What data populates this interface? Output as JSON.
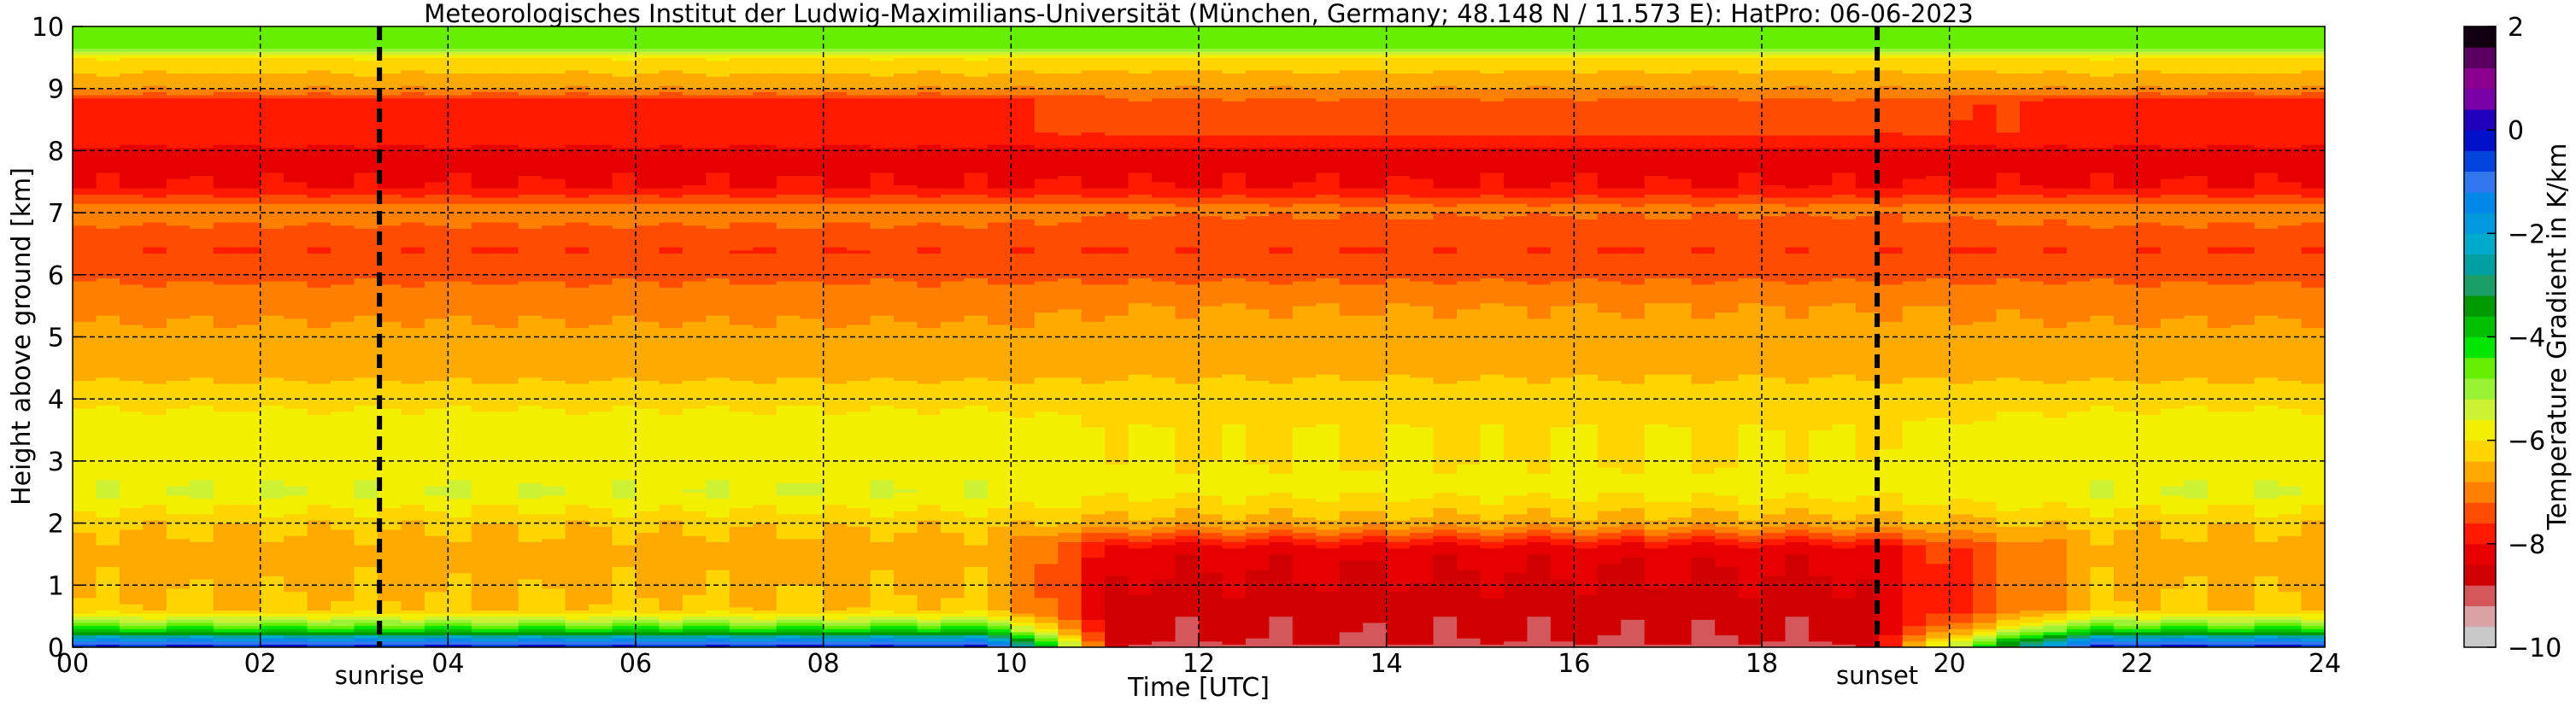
{
  "chart_data": {
    "type": "heatmap",
    "title": "Meteorologisches Institut der Ludwig-Maximilians-Universität (München, Germany; 48.148 N / 11.573 E):    HatPro: 06-06-2023",
    "xlabel": "Time [UTC]",
    "ylabel": "Height above ground [km]",
    "xlim": [
      0,
      24
    ],
    "ylim": [
      0,
      10
    ],
    "x_ticks": [
      0,
      2,
      4,
      6,
      8,
      10,
      12,
      14,
      16,
      18,
      20,
      22,
      24
    ],
    "x_tick_labels": [
      "00",
      "02",
      "04",
      "06",
      "08",
      "10",
      "12",
      "14",
      "16",
      "18",
      "20",
      "22",
      "24"
    ],
    "y_ticks": [
      0,
      1,
      2,
      3,
      4,
      5,
      6,
      7,
      8,
      9,
      10
    ],
    "y_tick_labels": [
      "0",
      "1",
      "2",
      "3",
      "4",
      "5",
      "6",
      "7",
      "8",
      "9",
      "10"
    ],
    "grid": true,
    "colorbar": {
      "label": "Temperature Gradient in K/km",
      "range": [
        -10,
        2
      ],
      "ticks": [
        -10,
        -8,
        -6,
        -4,
        -2,
        0,
        2
      ],
      "tick_labels": [
        "−10",
        "−8",
        "−6",
        "−4",
        "−2",
        "0",
        "2"
      ],
      "levels": [
        {
          "from": -10.0,
          "to": -9.6,
          "color": "#c8c8c8"
        },
        {
          "from": -9.6,
          "to": -9.2,
          "color": "#d9a3a6"
        },
        {
          "from": -9.2,
          "to": -8.8,
          "color": "#d4575c"
        },
        {
          "from": -8.8,
          "to": -8.4,
          "color": "#d10000"
        },
        {
          "from": -8.4,
          "to": -8.0,
          "color": "#e60000"
        },
        {
          "from": -8.0,
          "to": -7.6,
          "color": "#ff1a00"
        },
        {
          "from": -7.6,
          "to": -7.2,
          "color": "#ff4d00"
        },
        {
          "from": -7.2,
          "to": -6.8,
          "color": "#ff8000"
        },
        {
          "from": -6.8,
          "to": -6.4,
          "color": "#ffaa00"
        },
        {
          "from": -6.4,
          "to": -6.0,
          "color": "#ffd500"
        },
        {
          "from": -6.0,
          "to": -5.6,
          "color": "#f2ef00"
        },
        {
          "from": -5.6,
          "to": -5.2,
          "color": "#ccf233"
        },
        {
          "from": -5.2,
          "to": -4.8,
          "color": "#99f233"
        },
        {
          "from": -4.8,
          "to": -4.4,
          "color": "#66ee00"
        },
        {
          "from": -4.4,
          "to": -4.0,
          "color": "#00e600"
        },
        {
          "from": -4.0,
          "to": -3.6,
          "color": "#00c000"
        },
        {
          "from": -3.6,
          "to": -3.2,
          "color": "#009900"
        },
        {
          "from": -3.2,
          "to": -2.8,
          "color": "#1aa066"
        },
        {
          "from": -2.8,
          "to": -2.4,
          "color": "#00a0a0"
        },
        {
          "from": -2.4,
          "to": -2.0,
          "color": "#00aacc"
        },
        {
          "from": -2.0,
          "to": -1.6,
          "color": "#0099dd"
        },
        {
          "from": -1.6,
          "to": -1.2,
          "color": "#0088e8"
        },
        {
          "from": -1.2,
          "to": -0.8,
          "color": "#3377ee"
        },
        {
          "from": -0.8,
          "to": -0.4,
          "color": "#0044dd"
        },
        {
          "from": -0.4,
          "to": 0.0,
          "color": "#0011cc"
        },
        {
          "from": 0.0,
          "to": 0.4,
          "color": "#2200bb"
        },
        {
          "from": 0.4,
          "to": 0.8,
          "color": "#7a00a8"
        },
        {
          "from": 0.8,
          "to": 1.2,
          "color": "#8c0090"
        },
        {
          "from": 1.2,
          "to": 1.6,
          "color": "#5a0060"
        },
        {
          "from": 1.6,
          "to": 2.0,
          "color": "#100010"
        }
      ]
    },
    "events": [
      {
        "label": "sunrise",
        "time": 3.27
      },
      {
        "label": "sunset",
        "time": 19.23
      }
    ],
    "field": {
      "description_levels_by_height_km": [
        {
          "z": 0.0,
          "night": -0.2,
          "day": -9.0
        },
        {
          "z": 0.1,
          "night": -1.2,
          "day": -8.8
        },
        {
          "z": 0.25,
          "night": -3.8,
          "day": -8.7
        },
        {
          "z": 0.4,
          "night": -5.0,
          "day": -8.7
        },
        {
          "z": 0.6,
          "night": -6.3,
          "day": -8.6
        },
        {
          "z": 1.0,
          "night": -6.5,
          "day": -8.5
        },
        {
          "z": 1.6,
          "night": -6.6,
          "day": -8.2
        },
        {
          "z": 2.0,
          "night": -6.3,
          "day": -6.6
        },
        {
          "z": 2.5,
          "night": -5.6,
          "day": -5.9
        },
        {
          "z": 3.0,
          "night": -5.7,
          "day": -6.0
        },
        {
          "z": 3.5,
          "night": -5.8,
          "day": -6.0
        },
        {
          "z": 4.0,
          "night": -6.1,
          "day": -6.2
        },
        {
          "z": 4.5,
          "night": -6.6,
          "day": -6.5
        },
        {
          "z": 5.0,
          "night": -6.7,
          "day": -6.7
        },
        {
          "z": 5.5,
          "night": -6.9,
          "day": -6.8
        },
        {
          "z": 6.0,
          "night": -7.3,
          "day": -7.3
        },
        {
          "z": 6.4,
          "night": -7.6,
          "day": -7.6
        },
        {
          "z": 6.8,
          "night": -7.2,
          "day": -7.3
        },
        {
          "z": 7.1,
          "night": -7.0,
          "day": -7.1
        },
        {
          "z": 7.4,
          "night": -8.0,
          "day": -8.0
        },
        {
          "z": 8.0,
          "night": -8.1,
          "day": -8.1
        },
        {
          "z": 8.3,
          "night": -7.7,
          "day": -7.5
        },
        {
          "z": 8.8,
          "night": -7.8,
          "day": -7.3
        },
        {
          "z": 9.0,
          "night": -6.8,
          "day": -6.8
        },
        {
          "z": 9.5,
          "night": -6.0,
          "day": -6.1
        },
        {
          "z": 9.7,
          "night": -4.5,
          "day": -4.5
        },
        {
          "z": 10.0,
          "night": -4.7,
          "day": -4.7
        }
      ]
    }
  }
}
